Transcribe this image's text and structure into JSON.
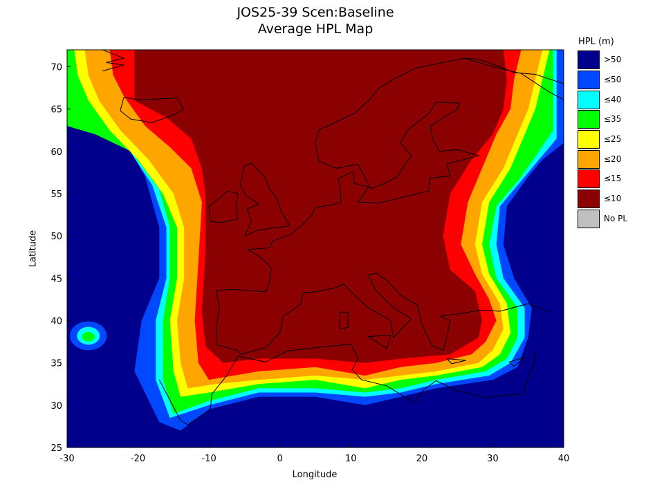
{
  "title": "JOS25-39 Scen:Baseline",
  "subtitle": "Average HPL Map",
  "xlabel": "Longitude",
  "ylabel": "Latitude",
  "legend": {
    "title": "HPL (m)",
    "items": [
      {
        "label": ">50",
        "color": "#00008c"
      },
      {
        "label": "≤50",
        "color": "#0048ff"
      },
      {
        "label": "≤40",
        "color": "#00ffff"
      },
      {
        "label": "≤35",
        "color": "#00ff00"
      },
      {
        "label": "≤25",
        "color": "#ffff00"
      },
      {
        "label": "≤20",
        "color": "#ffa500"
      },
      {
        "label": "≤15",
        "color": "#ff0000"
      },
      {
        "label": "≤10",
        "color": "#8b0000"
      },
      {
        "label": "No PL",
        "color": "#c0c0c0"
      }
    ]
  },
  "chart_data": {
    "type": "heatmap",
    "title": "JOS25-39 Scen:Baseline",
    "subtitle": "Average HPL Map",
    "xlabel": "Longitude",
    "ylabel": "Latitude",
    "xlim": [
      -30,
      40
    ],
    "ylim": [
      25,
      72
    ],
    "x_ticks": [
      -30,
      -20,
      -10,
      0,
      10,
      20,
      30,
      40
    ],
    "y_ticks": [
      25,
      30,
      35,
      40,
      45,
      50,
      55,
      60,
      65,
      70
    ],
    "contours": [
      {
        "level": "≤50",
        "polygon": [
          [
            -30,
            64.5
          ],
          [
            -27,
            63
          ],
          [
            -22,
            61.5
          ],
          [
            -19,
            57
          ],
          [
            -17,
            51
          ],
          [
            -17,
            45
          ],
          [
            -19.5,
            40
          ],
          [
            -20.5,
            34
          ],
          [
            -17,
            28
          ],
          [
            -14,
            27
          ],
          [
            -10,
            29.5
          ],
          [
            -3,
            31
          ],
          [
            5,
            31
          ],
          [
            12,
            30
          ],
          [
            17,
            31
          ],
          [
            22,
            32
          ],
          [
            30,
            33
          ],
          [
            33.5,
            34.5
          ],
          [
            35,
            38
          ],
          [
            35.5,
            41.5
          ],
          [
            33,
            45
          ],
          [
            31.5,
            49
          ],
          [
            32,
            53.5
          ],
          [
            35,
            57
          ],
          [
            37,
            59
          ],
          [
            40,
            61
          ]
        ]
      },
      {
        "level": "≤40",
        "polygon": [
          [
            -30,
            63.5
          ],
          [
            -26.5,
            62.5
          ],
          [
            -21.5,
            60.5
          ],
          [
            -18,
            56
          ],
          [
            -16,
            51
          ],
          [
            -16,
            45
          ],
          [
            -17.5,
            40
          ],
          [
            -17.5,
            33
          ],
          [
            -15.5,
            28.5
          ],
          [
            -10,
            30
          ],
          [
            -3,
            31.5
          ],
          [
            5,
            31.5
          ],
          [
            12,
            31
          ],
          [
            17,
            31.5
          ],
          [
            22,
            32.5
          ],
          [
            29.5,
            33.5
          ],
          [
            32.5,
            35
          ],
          [
            34.5,
            38
          ],
          [
            34.5,
            41.5
          ],
          [
            31.5,
            45
          ],
          [
            30.5,
            49
          ],
          [
            31,
            53.5
          ],
          [
            34.5,
            57
          ],
          [
            37,
            59.5
          ],
          [
            39,
            61.5
          ]
        ]
      },
      {
        "level": "≤35",
        "polygon": [
          [
            -30,
            63
          ],
          [
            -26,
            62
          ],
          [
            -21,
            60
          ],
          [
            -17,
            55.5
          ],
          [
            -15.5,
            51
          ],
          [
            -15.5,
            45
          ],
          [
            -16.5,
            40
          ],
          [
            -16.5,
            33
          ],
          [
            -15,
            29
          ],
          [
            -10,
            30.5
          ],
          [
            -3,
            32
          ],
          [
            5,
            32
          ],
          [
            12,
            31.5
          ],
          [
            17,
            32
          ],
          [
            22,
            33
          ],
          [
            29,
            34
          ],
          [
            32,
            35.5
          ],
          [
            33.5,
            38
          ],
          [
            33.5,
            41.5
          ],
          [
            30.5,
            45
          ],
          [
            29.5,
            49
          ],
          [
            30.5,
            53.5
          ],
          [
            34,
            57
          ],
          [
            36.5,
            60
          ],
          [
            38.5,
            62.5
          ]
        ]
      },
      {
        "level": "≤25",
        "polygon": [
          [
            -29,
            72
          ],
          [
            -28.5,
            69
          ],
          [
            -27,
            66
          ],
          [
            -24,
            62.5
          ],
          [
            -20,
            59
          ],
          [
            -16.5,
            55
          ],
          [
            -14.5,
            51
          ],
          [
            -14.5,
            45
          ],
          [
            -15.5,
            40
          ],
          [
            -15,
            34
          ],
          [
            -14,
            31
          ],
          [
            -10,
            31.5
          ],
          [
            -3,
            32.5
          ],
          [
            5,
            33
          ],
          [
            12,
            32
          ],
          [
            17,
            33
          ],
          [
            22,
            33.5
          ],
          [
            28.5,
            34.5
          ],
          [
            31,
            36
          ],
          [
            32.5,
            38.5
          ],
          [
            32,
            42
          ],
          [
            29.5,
            45.5
          ],
          [
            28.5,
            49
          ],
          [
            29.5,
            54
          ],
          [
            32.5,
            58
          ],
          [
            34.5,
            62
          ],
          [
            36,
            65
          ],
          [
            37,
            68.5
          ],
          [
            38,
            72
          ]
        ]
      },
      {
        "level": "≤20",
        "polygon": [
          [
            -27.5,
            72
          ],
          [
            -27,
            69
          ],
          [
            -25.5,
            66
          ],
          [
            -22.5,
            62.5
          ],
          [
            -18.5,
            59
          ],
          [
            -15,
            55
          ],
          [
            -13.5,
            51
          ],
          [
            -13.5,
            45
          ],
          [
            -14.5,
            40
          ],
          [
            -14,
            35
          ],
          [
            -13,
            32
          ],
          [
            -9,
            32.5
          ],
          [
            -3,
            33
          ],
          [
            5,
            33.5
          ],
          [
            12,
            33
          ],
          [
            17,
            33.5
          ],
          [
            22,
            34
          ],
          [
            28,
            35
          ],
          [
            30,
            36.5
          ],
          [
            31.5,
            39
          ],
          [
            31,
            42
          ],
          [
            28.5,
            45.5
          ],
          [
            27.5,
            49
          ],
          [
            28.5,
            54
          ],
          [
            31.5,
            58
          ],
          [
            33.5,
            62
          ],
          [
            35,
            65
          ],
          [
            36,
            68.5
          ],
          [
            37,
            72
          ]
        ]
      },
      {
        "level": "≤15",
        "polygon": [
          [
            -24,
            72
          ],
          [
            -23.5,
            69
          ],
          [
            -22,
            66.5
          ],
          [
            -19,
            63
          ],
          [
            -15.5,
            60.5
          ],
          [
            -12.5,
            58
          ],
          [
            -11,
            54
          ],
          [
            -11.5,
            47
          ],
          [
            -12,
            40
          ],
          [
            -11.5,
            35
          ],
          [
            -10,
            33
          ],
          [
            -3,
            34
          ],
          [
            5,
            34.5
          ],
          [
            12,
            33.5
          ],
          [
            17,
            34.5
          ],
          [
            22,
            35
          ],
          [
            27,
            36
          ],
          [
            29,
            37.5
          ],
          [
            30.5,
            40
          ],
          [
            29.5,
            42.5
          ],
          [
            27.5,
            45.5
          ],
          [
            25.5,
            49
          ],
          [
            26.5,
            54
          ],
          [
            28.5,
            58
          ],
          [
            30.5,
            62
          ],
          [
            32.5,
            65
          ],
          [
            33,
            68.5
          ],
          [
            34,
            72
          ]
        ]
      },
      {
        "level": "≤10",
        "polygon": [
          [
            -20.5,
            72
          ],
          [
            -20.5,
            66
          ],
          [
            -16,
            64
          ],
          [
            -12.5,
            61.5
          ],
          [
            -11,
            58
          ],
          [
            -10.5,
            55
          ],
          [
            -10.5,
            48
          ],
          [
            -11,
            41
          ],
          [
            -10.5,
            37
          ],
          [
            -8,
            35
          ],
          [
            -3,
            35.5
          ],
          [
            5,
            35.5
          ],
          [
            12,
            35
          ],
          [
            17,
            35.5
          ],
          [
            24,
            36
          ],
          [
            28,
            38
          ],
          [
            28.5,
            40
          ],
          [
            27.5,
            43.5
          ],
          [
            24,
            46
          ],
          [
            23,
            50
          ],
          [
            24,
            55
          ],
          [
            27,
            59
          ],
          [
            30,
            62
          ],
          [
            31.5,
            65
          ],
          [
            32,
            68.5
          ],
          [
            31.5,
            72
          ]
        ]
      }
    ],
    "island_contours": [
      {
        "name": "azores",
        "rings": [
          {
            "level": "≤50",
            "center": [
              -27,
              38.2
            ],
            "r": [
              2.6,
              1.7
            ]
          },
          {
            "level": "≤40",
            "center": [
              -27,
              38.2
            ],
            "r": [
              1.6,
              1.05
            ]
          },
          {
            "level": "≤35",
            "center": [
              -27,
              38.1
            ],
            "r": [
              0.9,
              0.55
            ]
          }
        ]
      }
    ],
    "background_level": ">50",
    "grid": false,
    "legend_position": "right"
  }
}
